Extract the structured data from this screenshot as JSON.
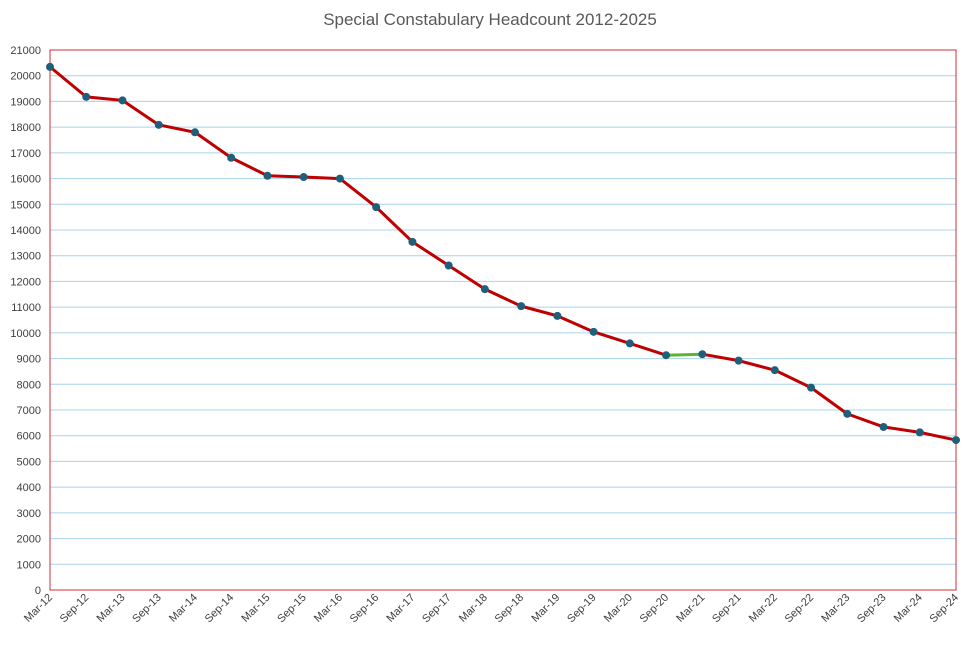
{
  "chart_data": {
    "type": "line",
    "title": "Special Constabulary Headcount 2012-2025",
    "xlabel": "",
    "ylabel": "",
    "ylim": [
      0,
      21000
    ],
    "ytick_step": 1000,
    "grid": true,
    "categories": [
      "Mar-12",
      "Sep-12",
      "Mar-13",
      "Sep-13",
      "Mar-14",
      "Sep-14",
      "Mar-15",
      "Sep-15",
      "Mar-16",
      "Sep-16",
      "Mar-17",
      "Sep-17",
      "Mar-18",
      "Sep-18",
      "Mar-19",
      "Sep-19",
      "Mar-20",
      "Sep-20",
      "Mar-21",
      "Sep-21",
      "Mar-22",
      "Sep-22",
      "Mar-23",
      "Sep-23",
      "Mar-24",
      "Sep-24"
    ],
    "series": [
      {
        "name": "Headcount",
        "values": [
          20343,
          19178,
          19040,
          18090,
          17800,
          16810,
          16110,
          16060,
          16000,
          14890,
          13540,
          12620,
          11700,
          11040,
          10660,
          10040,
          9590,
          9130,
          9170,
          8920,
          8550,
          7870,
          6850,
          6340,
          6130,
          5830
        ]
      }
    ],
    "highlight_segment": {
      "from_index": 17,
      "to_index": 18
    },
    "colors": {
      "line": "#c00000",
      "highlight_line": "#5cb531",
      "marker": "#1f5f7a",
      "plot_border": "#d03030",
      "gridline": "#a8d4ea",
      "tick_text": "#404040",
      "title_text": "#595959"
    }
  }
}
